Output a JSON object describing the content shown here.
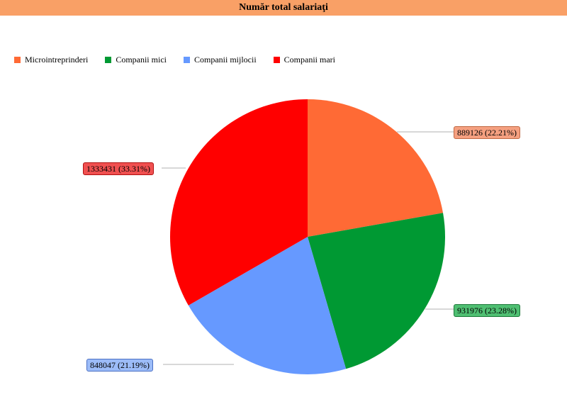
{
  "chart_data": {
    "type": "pie",
    "title": "Număr total salariaţi",
    "legend_position": "top-left",
    "slices": [
      {
        "name": "Microintreprinderi",
        "value": 889126,
        "label": "889126 (22.21%)",
        "color": "#ff6a35",
        "label_bg": "#f5a080",
        "label_border": "#c06a45"
      },
      {
        "name": "Companii mici",
        "value": 931976,
        "label": "931976 (23.28%)",
        "color": "#009933",
        "label_bg": "#4fbf72",
        "label_border": "#1e7a3a"
      },
      {
        "name": "Companii mijlocii",
        "value": 848047,
        "label": "848047 (21.19%)",
        "color": "#6699ff",
        "label_bg": "#9cbcf8",
        "label_border": "#4a6fc4"
      },
      {
        "name": "Companii mari",
        "value": 1333431,
        "label": "1333431 (33.31%)",
        "color": "#ff0000",
        "label_bg": "#f05050",
        "label_border": "#b01010"
      }
    ]
  }
}
